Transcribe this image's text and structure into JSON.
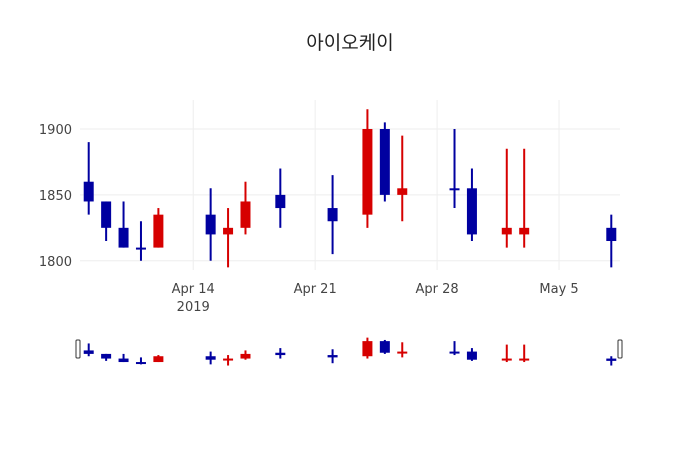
{
  "chart_data": {
    "type": "candlestick",
    "title": "아이오케이",
    "xlabel": "",
    "ylabel": "",
    "ylim": [
      1793,
      1922
    ],
    "xlim": [
      "2019-04-07T12:00",
      "2019-05-08T12:00"
    ],
    "grid": true,
    "increasing_color": "#d60000",
    "decreasing_color": "#0000a0",
    "y_ticks": [
      1800,
      1850,
      1900
    ],
    "x_ticks": [
      {
        "date": "2019-04-14",
        "label": "Apr 14",
        "sub": "2019"
      },
      {
        "date": "2019-04-21",
        "label": "Apr 21",
        "sub": ""
      },
      {
        "date": "2019-04-28",
        "label": "Apr 28",
        "sub": ""
      },
      {
        "date": "2019-05-05",
        "label": "May 5",
        "sub": ""
      }
    ],
    "candles": [
      {
        "date": "2019-04-08",
        "open": 1860,
        "high": 1890,
        "low": 1835,
        "close": 1845
      },
      {
        "date": "2019-04-09",
        "open": 1845,
        "high": 1845,
        "low": 1815,
        "close": 1825
      },
      {
        "date": "2019-04-10",
        "open": 1825,
        "high": 1845,
        "low": 1810,
        "close": 1810
      },
      {
        "date": "2019-04-11",
        "open": 1810,
        "high": 1830,
        "low": 1800,
        "close": 1810
      },
      {
        "date": "2019-04-12",
        "open": 1810,
        "high": 1840,
        "low": 1810,
        "close": 1835
      },
      {
        "date": "2019-04-15",
        "open": 1835,
        "high": 1855,
        "low": 1800,
        "close": 1820
      },
      {
        "date": "2019-04-16",
        "open": 1820,
        "high": 1840,
        "low": 1795,
        "close": 1825
      },
      {
        "date": "2019-04-17",
        "open": 1825,
        "high": 1860,
        "low": 1820,
        "close": 1845
      },
      {
        "date": "2019-04-19",
        "open": 1850,
        "high": 1870,
        "low": 1825,
        "close": 1840
      },
      {
        "date": "2019-04-22",
        "open": 1840,
        "high": 1865,
        "low": 1805,
        "close": 1830
      },
      {
        "date": "2019-04-24",
        "open": 1835,
        "high": 1915,
        "low": 1825,
        "close": 1900
      },
      {
        "date": "2019-04-25",
        "open": 1900,
        "high": 1905,
        "low": 1845,
        "close": 1850
      },
      {
        "date": "2019-04-26",
        "open": 1850,
        "high": 1895,
        "low": 1830,
        "close": 1855
      },
      {
        "date": "2019-04-29",
        "open": 1855,
        "high": 1900,
        "low": 1840,
        "close": 1855
      },
      {
        "date": "2019-04-30",
        "open": 1855,
        "high": 1870,
        "low": 1815,
        "close": 1820
      },
      {
        "date": "2019-05-02",
        "open": 1820,
        "high": 1885,
        "low": 1810,
        "close": 1825
      },
      {
        "date": "2019-05-03",
        "open": 1820,
        "high": 1885,
        "low": 1810,
        "close": 1825
      },
      {
        "date": "2019-05-08",
        "open": 1825,
        "high": 1835,
        "low": 1795,
        "close": 1815
      }
    ],
    "rangeslider": true
  }
}
